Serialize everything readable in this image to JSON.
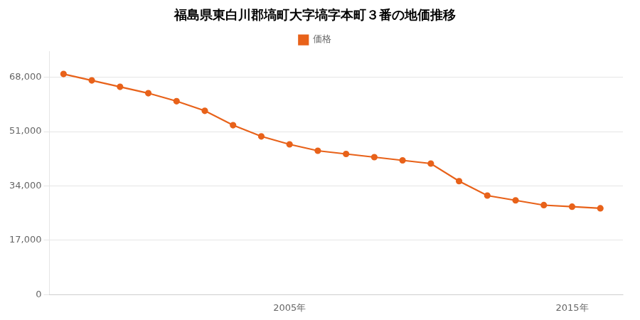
{
  "chart_data": {
    "type": "line",
    "title": "福島県東白川郡塙町大字塙字本町３番の地価推移",
    "x": [
      1997,
      1998,
      1999,
      2000,
      2001,
      2002,
      2003,
      2004,
      2005,
      2006,
      2007,
      2008,
      2009,
      2010,
      2011,
      2012,
      2013,
      2014,
      2015,
      2016
    ],
    "series": [
      {
        "name": "価格",
        "color": "#e8621a",
        "marker": "circle",
        "values": [
          69000,
          67000,
          65000,
          63000,
          60500,
          57500,
          53000,
          49500,
          47000,
          45000,
          44000,
          43000,
          42000,
          41000,
          35500,
          31000,
          29500,
          28000,
          27500,
          27000
        ]
      }
    ],
    "xlim": [
      1996.5,
      2016.8
    ],
    "xticks": [
      {
        "value": 2005,
        "label": "2005年"
      },
      {
        "value": 2015,
        "label": "2015年"
      }
    ],
    "ylim": [
      0,
      76000
    ],
    "yticks": [
      0,
      {
        "value": 17000,
        "label": "17,000"
      },
      {
        "value": 34000,
        "label": "34,000"
      },
      {
        "value": 51000,
        "label": "51,000"
      },
      {
        "value": 68000,
        "label": "68,000"
      }
    ],
    "grid": "y",
    "legend": "top"
  }
}
